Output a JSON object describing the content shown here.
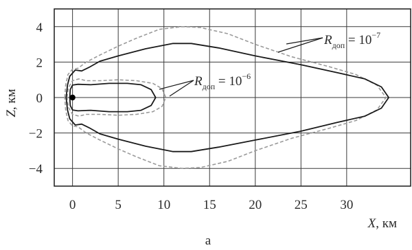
{
  "chart_data": {
    "type": "line",
    "xlabel": {
      "var": "X",
      "unit": ", км"
    },
    "ylabel": {
      "var": "Z",
      "unit": ", км"
    },
    "xlim": [
      -2,
      37
    ],
    "ylim": [
      -5,
      5
    ],
    "x_ticks": [
      0,
      5,
      10,
      15,
      20,
      25,
      30
    ],
    "y_ticks": [
      4,
      2,
      0,
      -2,
      -4
    ],
    "x_tick_labels": [
      "0",
      "5",
      "10",
      "15",
      "20",
      "25",
      "30"
    ],
    "y_tick_labels": [
      "4",
      "2",
      "0",
      "−2",
      "−4"
    ],
    "grid": true,
    "panel_label": "а",
    "marker": {
      "x": 0,
      "y": 0
    },
    "series": [
      {
        "style": "solid",
        "color": "#1a1a1a",
        "label": {
          "base": "R",
          "sub": "доп",
          "eq": " = 10",
          "sup": "−6"
        },
        "points": [
          [
            -0.3,
            0
          ],
          [
            -0.25,
            0.45
          ],
          [
            0,
            0.7
          ],
          [
            0.6,
            0.75
          ],
          [
            2,
            0.72
          ],
          [
            4,
            0.8
          ],
          [
            6,
            0.8
          ],
          [
            7.5,
            0.72
          ],
          [
            8.6,
            0.45
          ],
          [
            9.1,
            0
          ],
          [
            8.6,
            -0.45
          ],
          [
            7.5,
            -0.72
          ],
          [
            6,
            -0.8
          ],
          [
            4,
            -0.8
          ],
          [
            2,
            -0.72
          ],
          [
            0.6,
            -0.75
          ],
          [
            0,
            -0.7
          ],
          [
            -0.25,
            -0.45
          ],
          [
            -0.3,
            0
          ]
        ]
      },
      {
        "style": "solid",
        "color": "#1a1a1a",
        "label": {
          "base": "R",
          "sub": "доп",
          "eq": " = 10",
          "sup": "−7"
        },
        "points": [
          [
            -0.7,
            0
          ],
          [
            -0.55,
            0.7
          ],
          [
            -0.3,
            1.2
          ],
          [
            0.3,
            1.55
          ],
          [
            1,
            1.5
          ],
          [
            1.8,
            1.7
          ],
          [
            3,
            2.05
          ],
          [
            5,
            2.35
          ],
          [
            8,
            2.75
          ],
          [
            11,
            3.05
          ],
          [
            13,
            3.05
          ],
          [
            16,
            2.8
          ],
          [
            20,
            2.35
          ],
          [
            25,
            1.85
          ],
          [
            29,
            1.4
          ],
          [
            32,
            1.05
          ],
          [
            33.8,
            0.6
          ],
          [
            34.6,
            0
          ],
          [
            33.8,
            -0.6
          ],
          [
            32,
            -1.05
          ],
          [
            29,
            -1.4
          ],
          [
            25,
            -1.9
          ],
          [
            20,
            -2.4
          ],
          [
            16,
            -2.8
          ],
          [
            13,
            -3.05
          ],
          [
            11,
            -3.05
          ],
          [
            8,
            -2.75
          ],
          [
            5,
            -2.35
          ],
          [
            3,
            -2.05
          ],
          [
            1.8,
            -1.7
          ],
          [
            1,
            -1.5
          ],
          [
            0.3,
            -1.55
          ],
          [
            -0.3,
            -1.2
          ],
          [
            -0.55,
            -0.7
          ],
          [
            -0.7,
            0
          ]
        ]
      },
      {
        "style": "dashed",
        "color": "#9a9a9a",
        "points": [
          [
            -0.6,
            0
          ],
          [
            -0.45,
            0.55
          ],
          [
            0,
            0.95
          ],
          [
            0.7,
            1.05
          ],
          [
            1.5,
            0.95
          ],
          [
            3,
            0.95
          ],
          [
            5,
            1.0
          ],
          [
            7,
            0.95
          ],
          [
            8.8,
            0.8
          ],
          [
            9.8,
            0.5
          ],
          [
            10.2,
            0
          ],
          [
            9.8,
            -0.5
          ],
          [
            8.8,
            -0.8
          ],
          [
            7,
            -0.95
          ],
          [
            5,
            -1.0
          ],
          [
            3,
            -0.95
          ],
          [
            1.5,
            -0.95
          ],
          [
            0.7,
            -1.05
          ],
          [
            0,
            -0.95
          ],
          [
            -0.45,
            -0.55
          ],
          [
            -0.6,
            0
          ]
        ]
      },
      {
        "style": "dashed",
        "color": "#9a9a9a",
        "points": [
          [
            -0.85,
            0
          ],
          [
            -0.75,
            0.7
          ],
          [
            -0.5,
            1.3
          ],
          [
            0,
            1.6
          ],
          [
            0.6,
            1.65
          ],
          [
            1.5,
            2.0
          ],
          [
            3,
            2.4
          ],
          [
            5,
            2.9
          ],
          [
            7,
            3.35
          ],
          [
            9.5,
            3.85
          ],
          [
            12,
            4.0
          ],
          [
            14,
            3.95
          ],
          [
            17,
            3.6
          ],
          [
            20,
            3.0
          ],
          [
            24,
            2.3
          ],
          [
            28,
            1.75
          ],
          [
            31,
            1.3
          ],
          [
            33.3,
            0.7
          ],
          [
            34.3,
            0
          ],
          [
            33.3,
            -0.7
          ],
          [
            31,
            -1.3
          ],
          [
            28,
            -1.75
          ],
          [
            24,
            -2.3
          ],
          [
            20,
            -3.0
          ],
          [
            17,
            -3.6
          ],
          [
            14,
            -3.95
          ],
          [
            12,
            -4.0
          ],
          [
            9.5,
            -3.85
          ],
          [
            7,
            -3.35
          ],
          [
            5,
            -2.9
          ],
          [
            3,
            -2.4
          ],
          [
            1.5,
            -2.0
          ],
          [
            0.6,
            -1.65
          ],
          [
            0,
            -1.6
          ],
          [
            -0.5,
            -1.3
          ],
          [
            -0.75,
            -0.7
          ],
          [
            -0.85,
            0
          ]
        ]
      }
    ]
  }
}
